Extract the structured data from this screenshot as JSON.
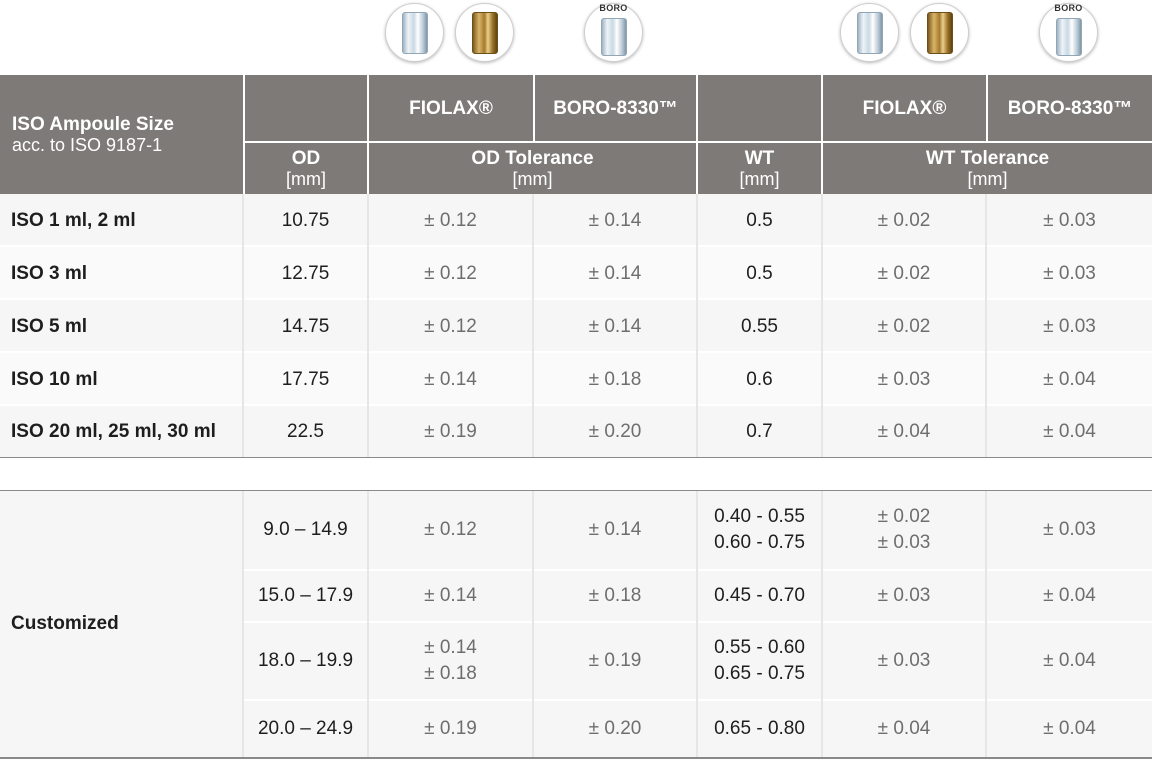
{
  "icons": {
    "boro_tag": "BORO"
  },
  "header": {
    "size_title": "ISO Ampoule Size",
    "size_subtitle": "acc. to ISO 9187-1",
    "od": "OD",
    "od_unit": "[mm]",
    "fiolax": "FIOLAX®",
    "boro": "BORO-8330™",
    "od_tol": "OD Tolerance",
    "od_tol_unit": "[mm]",
    "wt": "WT",
    "wt_unit": "[mm]",
    "wt_fiolax": "FIOLAX®",
    "wt_boro": "BORO-8330™",
    "wt_tol": "WT Tolerance",
    "wt_tol_unit": "[mm]"
  },
  "iso_rows": [
    {
      "size": "ISO 1 ml, 2 ml",
      "od": "10.75",
      "od_fiolax": "± 0.12",
      "od_boro": "± 0.14",
      "wt": "0.5",
      "wt_fiolax": "± 0.02",
      "wt_boro": "± 0.03"
    },
    {
      "size": "ISO 3 ml",
      "od": "12.75",
      "od_fiolax": "± 0.12",
      "od_boro": "± 0.14",
      "wt": "0.5",
      "wt_fiolax": "± 0.02",
      "wt_boro": "± 0.03"
    },
    {
      "size": "ISO 5 ml",
      "od": "14.75",
      "od_fiolax": "± 0.12",
      "od_boro": "± 0.14",
      "wt": "0.55",
      "wt_fiolax": "± 0.02",
      "wt_boro": "± 0.03"
    },
    {
      "size": "ISO 10 ml",
      "od": "17.75",
      "od_fiolax": "± 0.14",
      "od_boro": "± 0.18",
      "wt": "0.6",
      "wt_fiolax": "± 0.03",
      "wt_boro": "± 0.04"
    },
    {
      "size": "ISO 20 ml, 25 ml, 30 ml",
      "od": "22.5",
      "od_fiolax": "± 0.19",
      "od_boro": "± 0.20",
      "wt": "0.7",
      "wt_fiolax": "± 0.04",
      "wt_boro": "± 0.04"
    }
  ],
  "custom": {
    "label": "Customized",
    "rows": [
      {
        "od": "9.0 – 14.9",
        "od_fiolax": [
          "± 0.12"
        ],
        "od_boro": "± 0.14",
        "wt": [
          "0.40 - 0.55",
          "0.60 - 0.75"
        ],
        "wt_fiolax": [
          "± 0.02",
          "± 0.03"
        ],
        "wt_boro": "± 0.03"
      },
      {
        "od": "15.0 – 17.9",
        "od_fiolax": [
          "± 0.14"
        ],
        "od_boro": "± 0.18",
        "wt": [
          "0.45 - 0.70"
        ],
        "wt_fiolax": [
          "± 0.03"
        ],
        "wt_boro": "± 0.04"
      },
      {
        "od": "18.0 – 19.9",
        "od_fiolax": [
          "± 0.14",
          "± 0.18"
        ],
        "od_boro": "± 0.19",
        "wt": [
          "0.55 - 0.60",
          "0.65 - 0.75"
        ],
        "wt_fiolax": [
          "± 0.03"
        ],
        "wt_boro": "± 0.04"
      },
      {
        "od": "20.0 – 24.9",
        "od_fiolax": [
          "± 0.19"
        ],
        "od_boro": "± 0.20",
        "wt": [
          "0.65 - 0.80"
        ],
        "wt_fiolax": [
          "± 0.04"
        ],
        "wt_boro": "± 0.04"
      }
    ]
  }
}
